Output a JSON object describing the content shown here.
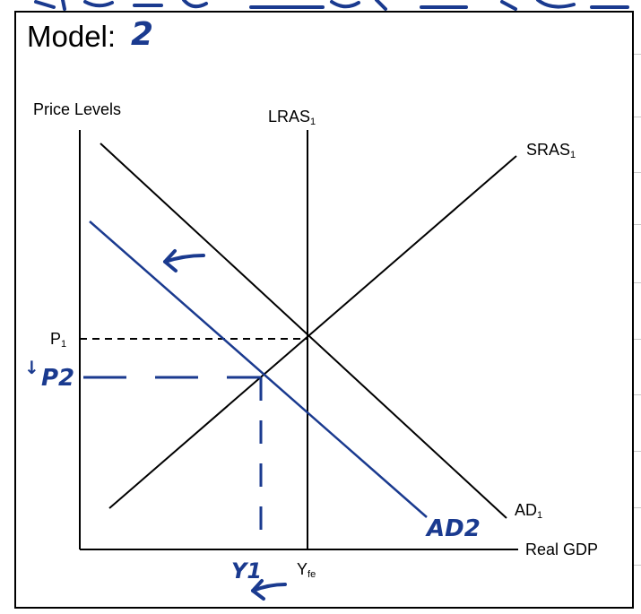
{
  "title": {
    "prefix": "Model:",
    "handwritten_number": "2"
  },
  "axes": {
    "y_label": "Price Levels",
    "x_label": "Real GDP"
  },
  "curves": {
    "lras": {
      "name": "LRAS",
      "sub": "1"
    },
    "sras": {
      "name": "SRAS",
      "sub": "1"
    },
    "ad1": {
      "name": "AD",
      "sub": "1"
    },
    "ad2": {
      "name": "AD2"
    }
  },
  "levels": {
    "p1": {
      "name": "P",
      "sub": "1"
    },
    "p2": {
      "name": "P2",
      "arrow": "↓"
    },
    "yfe": {
      "name": "Y",
      "sub": "fe"
    },
    "y1": {
      "name": "Y1"
    }
  },
  "colors": {
    "ink": "#000000",
    "annotation": "#1a3a8f"
  },
  "icons": [
    "left-arrow-icon",
    "down-arrow-icon"
  ]
}
